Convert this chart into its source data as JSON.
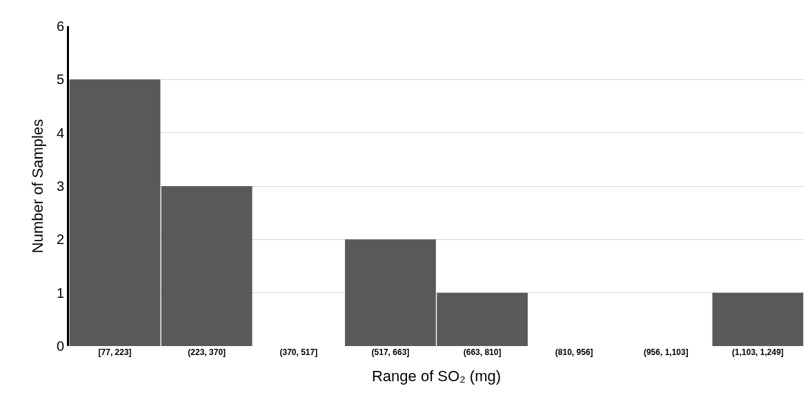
{
  "chart_data": {
    "type": "bar",
    "xlabel": "Range of SO₂ (mg)",
    "ylabel": "Number of Samples",
    "categories": [
      "[77, 223]",
      "(223, 370]",
      "(370, 517]",
      "(517, 663]",
      "(663, 810]",
      "(810, 956]",
      "(956, 1,103]",
      "(1,103, 1,249]"
    ],
    "values": [
      5,
      3,
      0,
      2,
      1,
      0,
      0,
      1
    ],
    "color": "#595959",
    "ylim": [
      0,
      6
    ],
    "yticks": [
      0,
      1,
      2,
      3,
      4,
      5,
      6
    ],
    "grid": "y"
  }
}
